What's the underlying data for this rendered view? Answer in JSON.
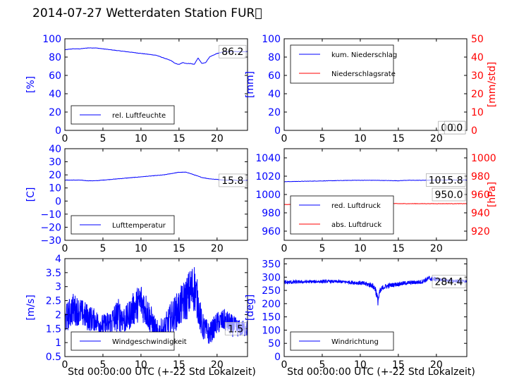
{
  "figure": {
    "title": "2014-07-27 Wetterdaten Station FUR\u0000"
  },
  "colors": {
    "primary": "#0000ff",
    "secondary": "#ff0000",
    "axis": "#000000"
  },
  "chart_data": [
    {
      "type": "line",
      "ylabel": "[%]",
      "xlim": [
        0,
        24
      ],
      "ylim": [
        0,
        100
      ],
      "xticks": [
        0,
        5,
        10,
        15,
        20
      ],
      "yticks": [
        0,
        20,
        40,
        60,
        80,
        100
      ],
      "legend": "bottom-left",
      "annotation": "86.2",
      "series": [
        {
          "name": "rel. Luftfeuchte",
          "color": "#0000ff",
          "x": [
            0,
            1,
            2,
            3,
            4,
            5,
            6,
            7,
            8,
            9,
            10,
            11,
            12,
            13,
            14,
            14.5,
            15,
            15.5,
            16,
            16.5,
            17,
            17.5,
            18,
            18.5,
            19,
            20,
            21,
            22,
            23,
            24
          ],
          "y": [
            88,
            89,
            89,
            90,
            90,
            89,
            88,
            87,
            86,
            85,
            84,
            83,
            82,
            79,
            76,
            73,
            72,
            74,
            73,
            73,
            72,
            79,
            73,
            74,
            80,
            84,
            86,
            86,
            86,
            86
          ]
        }
      ]
    },
    {
      "type": "line",
      "ylabel": "[mm]",
      "y2label": "[mm/std]",
      "xlim": [
        0,
        24
      ],
      "ylim": [
        0,
        100
      ],
      "y2lim": [
        0,
        50
      ],
      "xticks": [
        0,
        5,
        10,
        15,
        20
      ],
      "yticks": [
        0,
        20,
        40,
        60,
        80,
        100
      ],
      "y2ticks": [
        0,
        10,
        20,
        30,
        40,
        50
      ],
      "legend": "top-left",
      "annotation": "0.00",
      "annotation2": "0.0",
      "series": [
        {
          "name": "kum. Niederschlag",
          "color": "#0000ff",
          "x": [
            0,
            24
          ],
          "y": [
            0,
            0
          ]
        },
        {
          "name": "Niederschlagsrate",
          "color": "#ff0000",
          "x": [
            0,
            24
          ],
          "y": [
            0,
            0
          ],
          "axis": "right"
        }
      ]
    },
    {
      "type": "line",
      "ylabel": "[C]",
      "xlim": [
        0,
        24
      ],
      "ylim": [
        -30,
        40
      ],
      "xticks": [
        0,
        5,
        10,
        15,
        20
      ],
      "yticks": [
        -30,
        -20,
        -10,
        0,
        10,
        20,
        30,
        40
      ],
      "legend": "bottom-left",
      "annotation": "15.8",
      "series": [
        {
          "name": "Lufttemperatur",
          "color": "#0000ff",
          "x": [
            0,
            1,
            2,
            3,
            4,
            5,
            6,
            7,
            8,
            9,
            10,
            11,
            12,
            13,
            14,
            15,
            16,
            17,
            18,
            19,
            20,
            21,
            22,
            23,
            24
          ],
          "y": [
            16,
            16,
            16,
            15.5,
            15.5,
            16,
            16.5,
            17,
            17.5,
            18,
            18.5,
            19,
            19.5,
            20,
            21,
            22,
            22,
            20,
            18,
            17,
            16.5,
            16,
            16,
            15.8,
            15.8
          ]
        }
      ]
    },
    {
      "type": "line",
      "ylabel": "",
      "y2label": "[hPa]",
      "xlim": [
        0,
        24
      ],
      "ylim": [
        950,
        1050
      ],
      "y2lim": [
        910,
        1010
      ],
      "xticks": [
        0,
        5,
        10,
        15,
        20
      ],
      "yticks": [
        960,
        980,
        1000,
        1020,
        1040
      ],
      "y2ticks": [
        920,
        940,
        960,
        980,
        1000
      ],
      "legend": "bottom-left",
      "annotation": "1015.8",
      "annotation2": "950.0",
      "series": [
        {
          "name": "red. Luftdruck",
          "color": "#0000ff",
          "x": [
            0,
            3,
            6,
            9,
            12,
            15,
            16,
            18,
            21,
            24
          ],
          "y": [
            1014,
            1014.5,
            1015,
            1015.5,
            1015.5,
            1015,
            1015.5,
            1015.5,
            1015.8,
            1015.8
          ]
        },
        {
          "name": "abs. Luftdruck",
          "color": "#ff0000",
          "axis": "right",
          "x": [
            0,
            3,
            6,
            9,
            12,
            15,
            18,
            21,
            24
          ],
          "y": [
            949,
            949.5,
            950,
            950.5,
            950.5,
            950,
            950,
            950,
            950
          ]
        }
      ]
    },
    {
      "type": "line",
      "ylabel": "[m/s]",
      "xlabel": "Std 00:00:00 UTC (+-22 Std Lokalzeit)",
      "xlim": [
        0,
        24
      ],
      "ylim": [
        0.5,
        4.0
      ],
      "xticks": [
        0,
        5,
        10,
        15,
        20
      ],
      "yticks": [
        0.5,
        1.0,
        1.5,
        2.0,
        2.5,
        3.0,
        3.5,
        4.0
      ],
      "legend": "bottom-left",
      "annotation": "1.5",
      "series": [
        {
          "name": "Windgeschwindigkeit",
          "color": "#0000ff",
          "x": [
            0,
            1,
            2,
            3,
            4,
            5,
            6,
            7,
            8,
            9,
            10,
            11,
            12,
            13,
            14,
            15,
            16,
            16.5,
            17,
            17.5,
            18,
            19,
            20,
            21,
            22,
            23,
            24
          ],
          "y": [
            1.8,
            2.2,
            2.1,
            1.9,
            1.8,
            1.6,
            1.7,
            2.0,
            1.8,
            2.2,
            2.5,
            2.0,
            1.3,
            1.4,
            1.9,
            2.2,
            2.6,
            2.8,
            3.0,
            2.4,
            1.6,
            1.3,
            1.7,
            1.8,
            1.6,
            1.5,
            1.5
          ],
          "amplitude": [
            0.5,
            0.6,
            0.5,
            0.5,
            0.4,
            0.4,
            0.5,
            0.6,
            0.5,
            0.6,
            0.7,
            0.6,
            0.5,
            0.5,
            0.6,
            0.7,
            0.8,
            0.9,
            0.9,
            0.7,
            0.5,
            0.4,
            0.4,
            0.4,
            0.4,
            0.3,
            0.3
          ]
        }
      ]
    },
    {
      "type": "line",
      "ylabel": "[deg]",
      "xlabel": "Std 00:00:00 UTC (+-22 Std Lokalzeit)",
      "xlim": [
        0,
        24
      ],
      "ylim": [
        0,
        370
      ],
      "xticks": [
        0,
        5,
        10,
        15,
        20
      ],
      "yticks": [
        0,
        50,
        100,
        150,
        200,
        250,
        300,
        350
      ],
      "legend": "bottom-left",
      "annotation": "284.4",
      "series": [
        {
          "name": "Windrichtung",
          "color": "#0000ff",
          "x": [
            0,
            2,
            4,
            6,
            8,
            10,
            11.5,
            12,
            12.3,
            12.6,
            13,
            14,
            16,
            18,
            19,
            20,
            21,
            22,
            23,
            24
          ],
          "y": [
            280,
            282,
            283,
            284,
            282,
            278,
            270,
            255,
            210,
            245,
            262,
            270,
            278,
            282,
            295,
            292,
            288,
            286,
            285,
            284
          ],
          "amplitude": [
            8,
            6,
            6,
            6,
            6,
            8,
            10,
            15,
            20,
            15,
            10,
            8,
            8,
            8,
            10,
            8,
            6,
            6,
            6,
            6
          ]
        }
      ]
    }
  ]
}
